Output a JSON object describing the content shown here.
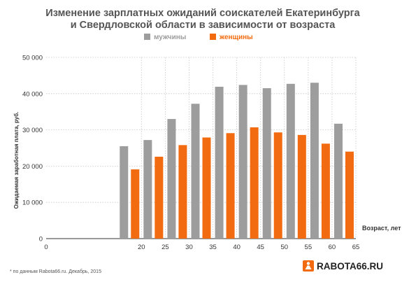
{
  "chart_data": {
    "type": "bar",
    "title": [
      "Изменение зарплатных ожиданий соискателей Екатеринбурга",
      "и Свердловской области в зависимости от возраста"
    ],
    "ylabel": "Ожидаемая заработная плата, руб.",
    "xlabel": "Возраст, лет",
    "ylim": [
      0,
      50000
    ],
    "yticks": [
      0,
      10000,
      20000,
      30000,
      40000,
      50000
    ],
    "ytick_labels": [
      "0",
      "10 000",
      "20 000",
      "30 000",
      "40 000",
      "50 000"
    ],
    "xlim": [
      0,
      65
    ],
    "xticks": [
      0,
      20,
      25,
      30,
      35,
      40,
      45,
      50,
      55,
      60,
      65
    ],
    "x_positions": [
      17.5,
      22.5,
      27.5,
      32.5,
      37.5,
      42.5,
      47.5,
      52.5,
      57.5,
      62.5
    ],
    "grid": true,
    "legend_placement": "top-center",
    "series": [
      {
        "name": "мужчины",
        "color": "#9d9d9d",
        "values": [
          25500,
          27200,
          33000,
          37200,
          41900,
          42400,
          41500,
          42700,
          43000,
          31700
        ]
      },
      {
        "name": "женщины",
        "color": "#f26b10",
        "values": [
          19100,
          22600,
          25800,
          27900,
          29100,
          30700,
          29300,
          28600,
          26200,
          24000
        ]
      }
    ]
  },
  "footnote": "* по данным Rabota66.ru. Декабрь, 2015",
  "logo": {
    "text": "RABOTA66.RU",
    "accent_color": "#f26b10"
  }
}
